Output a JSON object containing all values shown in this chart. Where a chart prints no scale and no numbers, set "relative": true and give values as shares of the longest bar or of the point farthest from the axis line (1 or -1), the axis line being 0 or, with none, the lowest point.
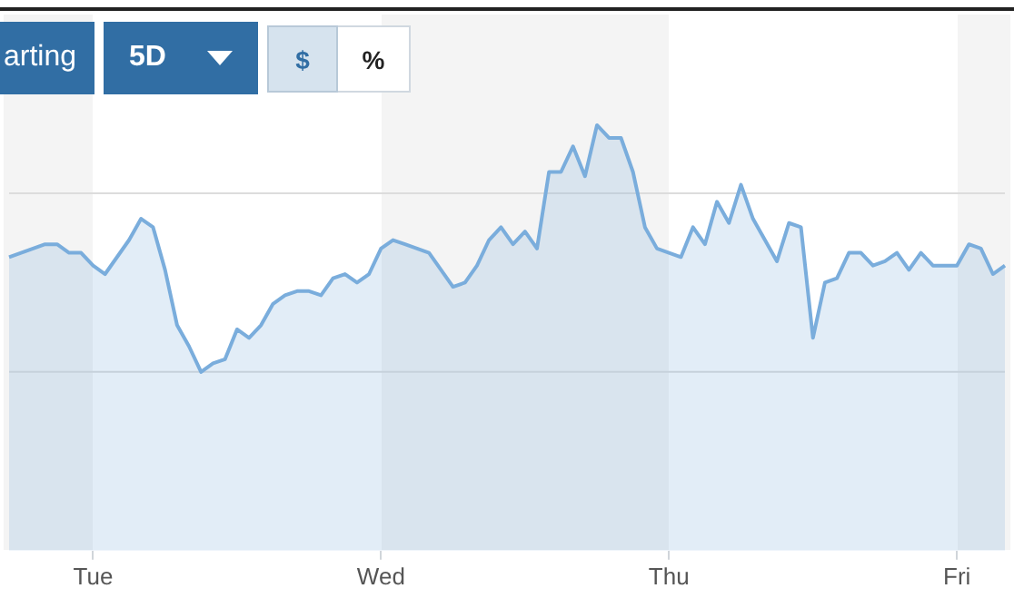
{
  "chart_data": {
    "type": "area",
    "relative": true,
    "legend": false,
    "ref_lines": [
      {
        "axis": "y",
        "value": 0.42,
        "color": "#dcdcdc"
      },
      {
        "axis": "y",
        "value": 0.84,
        "color": "#dcdcdc"
      }
    ],
    "marker": "none",
    "line_style": "solid",
    "annotations": [
      "arting",
      "5D",
      "$",
      "%"
    ],
    "categories": [
      null,
      null,
      null,
      null,
      null,
      null,
      null,
      "Tue",
      null,
      null,
      null,
      null,
      null,
      null,
      null,
      null,
      null,
      null,
      null,
      null,
      null,
      null,
      null,
      null,
      null,
      null,
      null,
      null,
      null,
      null,
      null,
      "Wed",
      null,
      null,
      null,
      null,
      null,
      null,
      null,
      null,
      null,
      null,
      null,
      null,
      null,
      null,
      null,
      null,
      null,
      null,
      null,
      null,
      null,
      null,
      null,
      "Thu",
      null,
      null,
      null,
      null,
      null,
      null,
      null,
      null,
      null,
      null,
      null,
      null,
      null,
      null,
      null,
      null,
      null,
      null,
      null,
      null,
      null,
      null,
      null,
      "Fri",
      null,
      null,
      null,
      null
    ],
    "series": [
      {
        "color": "#7aaddc",
        "values": [
          0.69,
          0.7,
          0.71,
          0.72,
          0.72,
          0.7,
          0.7,
          0.67,
          0.65,
          0.69,
          0.73,
          0.78,
          0.76,
          0.66,
          0.53,
          0.48,
          0.42,
          0.44,
          0.45,
          0.52,
          0.5,
          0.53,
          0.58,
          0.6,
          0.61,
          0.61,
          0.6,
          0.64,
          0.65,
          0.63,
          0.65,
          0.71,
          0.73,
          0.72,
          0.71,
          0.7,
          0.66,
          0.62,
          0.63,
          0.67,
          0.73,
          0.76,
          0.72,
          0.75,
          0.71,
          0.89,
          0.89,
          0.95,
          0.88,
          1.0,
          0.97,
          0.97,
          0.89,
          0.76,
          0.71,
          0.7,
          0.69,
          0.76,
          0.72,
          0.82,
          0.77,
          0.86,
          0.78,
          0.73,
          0.68,
          0.77,
          0.76,
          0.5,
          0.63,
          0.64,
          0.7,
          0.7,
          0.67,
          0.68,
          0.7,
          0.66,
          0.7,
          0.67,
          0.67,
          0.67,
          0.72,
          0.71,
          0.65,
          0.67
        ]
      }
    ]
  }
}
